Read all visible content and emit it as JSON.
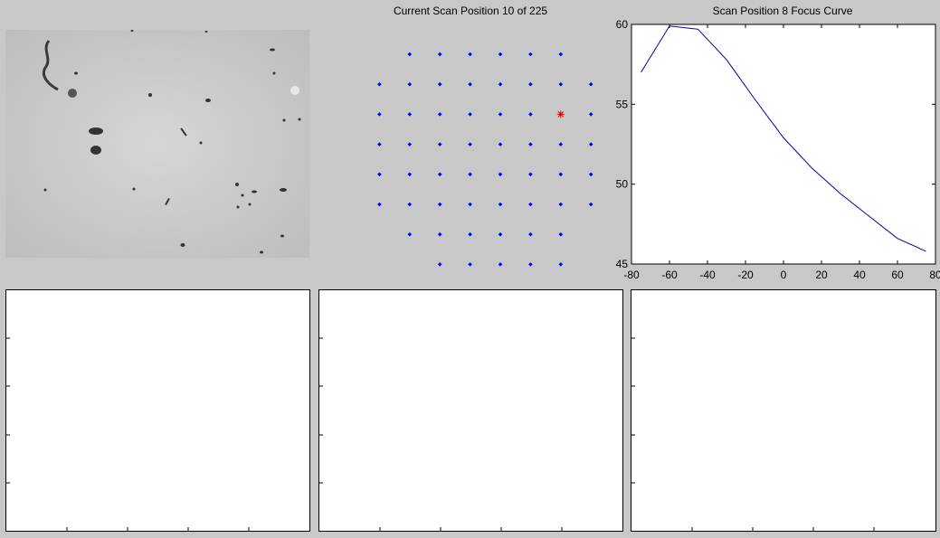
{
  "grid_title": "Current Scan Position 10 of 225",
  "focus_title": "Scan Position 8 Focus Curve",
  "colors": {
    "background": "#c8c8c8",
    "grid_point": "#0000ff",
    "current_point": "#ff0000",
    "focus_line": "#0000aa"
  },
  "scan_grid": {
    "rows": [
      {
        "y": 7,
        "x": [
          2,
          3,
          4,
          5,
          6,
          7
        ]
      },
      {
        "y": 6,
        "x": [
          1,
          2,
          3,
          4,
          5,
          6,
          7,
          8
        ]
      },
      {
        "y": 5,
        "x": [
          1,
          2,
          3,
          4,
          5,
          6,
          7,
          8
        ]
      },
      {
        "y": 4,
        "x": [
          1,
          2,
          3,
          4,
          5,
          6,
          7,
          8
        ]
      },
      {
        "y": 3,
        "x": [
          1,
          2,
          3,
          4,
          5,
          6,
          7,
          8
        ]
      },
      {
        "y": 2,
        "x": [
          1,
          2,
          3,
          4,
          5,
          6,
          7,
          8
        ]
      },
      {
        "y": 1,
        "x": [
          2,
          3,
          4,
          5,
          6,
          7
        ]
      },
      {
        "y": 0,
        "x": [
          3,
          4,
          5,
          6,
          7
        ]
      }
    ],
    "current": {
      "x": 7,
      "y": 5
    }
  },
  "chart_data": {
    "type": "line",
    "title": "Scan Position 8 Focus Curve",
    "xlim": [
      -80,
      80
    ],
    "ylim": [
      45,
      60
    ],
    "xticks": [
      "-80",
      "-60",
      "-40",
      "-20",
      "0",
      "20",
      "40",
      "60",
      "80"
    ],
    "yticks": [
      "60",
      "55",
      "50",
      "45"
    ],
    "x": [
      -75,
      -60,
      -45,
      -30,
      -15,
      0,
      15,
      30,
      45,
      60,
      75
    ],
    "y": [
      57.0,
      59.9,
      59.7,
      57.8,
      55.3,
      52.9,
      51.0,
      49.4,
      48.0,
      46.6,
      45.8
    ]
  }
}
